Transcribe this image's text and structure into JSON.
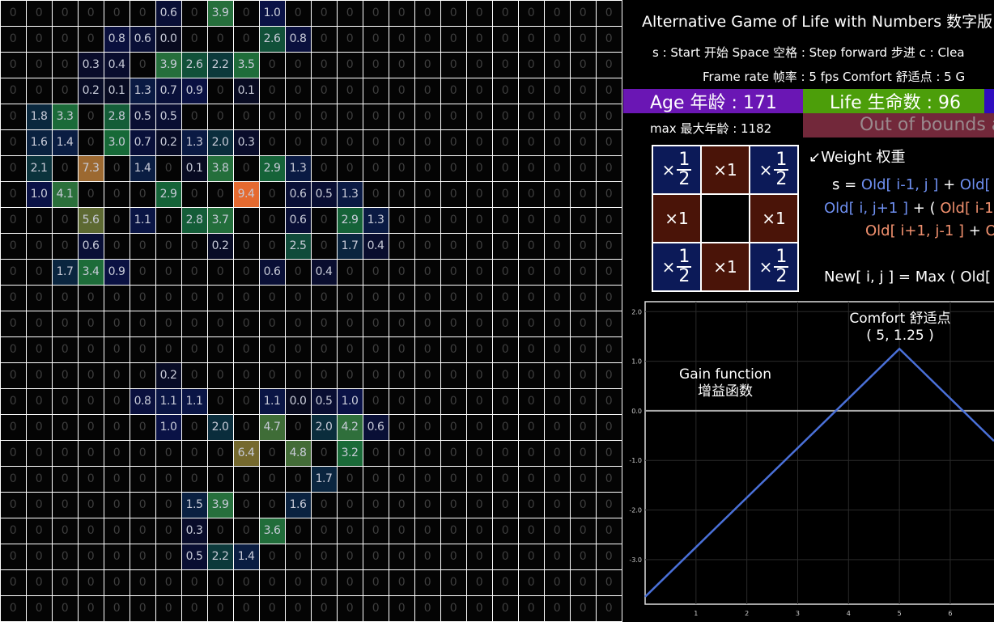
{
  "title": "Alternative Game of Life with Numbers   数字版",
  "controls": "s : Start 开始    Space 空格 : Step forward 步进    c : Clea",
  "frame_line": "Frame rate 帧率 : 5 fps    Comfort 舒适点 : 5    G",
  "age": "Age 年龄 : 171",
  "life": "Life 生命数 : 96",
  "max_age": "max 最大年龄 : 1182",
  "out_of_bounds": "Out of bounds a",
  "colors": {
    "age_bar": "#6a16b4",
    "life_bar": "#4c9e0a",
    "third_bar": "#2e0dbe",
    "oob_bar": "#72283a",
    "diag_weight": "#0c1a58",
    "card_weight": "#4a1408",
    "formula_blue": "#6e8ff0",
    "formula_salmon": "#f0906e",
    "gain_line": "#4a70d8"
  },
  "weights": {
    "label": "↙Weight 权重",
    "times": "×",
    "one": "×1",
    "half_num": "1",
    "half_den": "2"
  },
  "formula": {
    "l1": [
      "s = ",
      "Old[ i-1, j ]",
      " + ",
      "Old[ i"
    ],
    "l2": [
      "Old[ i, j+1 ]",
      " + ( ",
      "Old[ i-1,"
    ],
    "l3": [
      "Old[ i+1, j-1 ]",
      " + ",
      "Ol"
    ],
    "l4": "New[ i, j ] = Max ( Old["
  },
  "grid": [
    [
      "0",
      "0",
      "0",
      "0",
      "0",
      "0",
      "0.6",
      "0",
      "3.9",
      "0",
      "1.0",
      "0",
      "0",
      "0",
      "0",
      "0",
      "0",
      "0",
      "0",
      "0",
      "0",
      "0",
      "0",
      "0"
    ],
    [
      "0",
      "0",
      "0",
      "0",
      "0.8",
      "0.6",
      "0.0",
      "0",
      "0",
      "0",
      "2.6",
      "0.8",
      "0",
      "0",
      "0",
      "0",
      "0",
      "0",
      "0",
      "0",
      "0",
      "0",
      "0",
      "0"
    ],
    [
      "0",
      "0",
      "0",
      "0.3",
      "0.4",
      "0",
      "3.9",
      "2.6",
      "2.2",
      "3.5",
      "0",
      "0",
      "0",
      "0",
      "0",
      "0",
      "0",
      "0",
      "0",
      "0",
      "0",
      "0",
      "0",
      "0"
    ],
    [
      "0",
      "0",
      "0",
      "0.2",
      "0.1",
      "1.3",
      "0.7",
      "0.9",
      "0",
      "0.1",
      "0",
      "0",
      "0",
      "0",
      "0",
      "0",
      "0",
      "0",
      "0",
      "0",
      "0",
      "0",
      "0",
      "0"
    ],
    [
      "0",
      "1.8",
      "3.3",
      "0",
      "2.8",
      "0.5",
      "0.5",
      "0",
      "0",
      "0",
      "0",
      "0",
      "0",
      "0",
      "0",
      "0",
      "0",
      "0",
      "0",
      "0",
      "0",
      "0",
      "0",
      "0"
    ],
    [
      "0",
      "1.6",
      "1.4",
      "0",
      "3.0",
      "0.7",
      "0.2",
      "1.3",
      "2.0",
      "0.3",
      "0",
      "0",
      "0",
      "0",
      "0",
      "0",
      "0",
      "0",
      "0",
      "0",
      "0",
      "0",
      "0",
      "0"
    ],
    [
      "0",
      "2.1",
      "0",
      "7.3",
      "0",
      "1.4",
      "0",
      "0.1",
      "3.8",
      "0",
      "2.9",
      "1.3",
      "0",
      "0",
      "0",
      "0",
      "0",
      "0",
      "0",
      "0",
      "0",
      "0",
      "0",
      "0"
    ],
    [
      "0",
      "1.0",
      "4.1",
      "0",
      "0",
      "0",
      "2.9",
      "0",
      "0",
      "9.4",
      "0",
      "0.6",
      "0.5",
      "1.3",
      "0",
      "0",
      "0",
      "0",
      "0",
      "0",
      "0",
      "0",
      "0",
      "0"
    ],
    [
      "0",
      "0",
      "0",
      "5.6",
      "0",
      "1.1",
      "0",
      "2.8",
      "3.7",
      "0",
      "0",
      "0.6",
      "0",
      "2.9",
      "1.3",
      "0",
      "0",
      "0",
      "0",
      "0",
      "0",
      "0",
      "0",
      "0"
    ],
    [
      "0",
      "0",
      "0",
      "0.6",
      "0",
      "0",
      "0",
      "0",
      "0.2",
      "0",
      "0",
      "2.5",
      "0",
      "1.7",
      "0.4",
      "0",
      "0",
      "0",
      "0",
      "0",
      "0",
      "0",
      "0",
      "0"
    ],
    [
      "0",
      "0",
      "1.7",
      "3.4",
      "0.9",
      "0",
      "0",
      "0",
      "0",
      "0",
      "0.6",
      "0",
      "0.4",
      "0",
      "0",
      "0",
      "0",
      "0",
      "0",
      "0",
      "0",
      "0",
      "0",
      "0"
    ],
    [
      "0",
      "0",
      "0",
      "0",
      "0",
      "0",
      "0",
      "0",
      "0",
      "0",
      "0",
      "0",
      "0",
      "0",
      "0",
      "0",
      "0",
      "0",
      "0",
      "0",
      "0",
      "0",
      "0",
      "0"
    ],
    [
      "0",
      "0",
      "0",
      "0",
      "0",
      "0",
      "0",
      "0",
      "0",
      "0",
      "0",
      "0",
      "0",
      "0",
      "0",
      "0",
      "0",
      "0",
      "0",
      "0",
      "0",
      "0",
      "0",
      "0"
    ],
    [
      "0",
      "0",
      "0",
      "0",
      "0",
      "0",
      "0",
      "0",
      "0",
      "0",
      "0",
      "0",
      "0",
      "0",
      "0",
      "0",
      "0",
      "0",
      "0",
      "0",
      "0",
      "0",
      "0",
      "0"
    ],
    [
      "0",
      "0",
      "0",
      "0",
      "0",
      "0",
      "0.2",
      "0",
      "0",
      "0",
      "0",
      "0",
      "0",
      "0",
      "0",
      "0",
      "0",
      "0",
      "0",
      "0",
      "0",
      "0",
      "0",
      "0"
    ],
    [
      "0",
      "0",
      "0",
      "0",
      "0",
      "0.8",
      "1.1",
      "1.1",
      "0",
      "0",
      "1.1",
      "0.0",
      "0.5",
      "1.0",
      "0",
      "0",
      "0",
      "0",
      "0",
      "0",
      "0",
      "0",
      "0",
      "0"
    ],
    [
      "0",
      "0",
      "0",
      "0",
      "0",
      "0",
      "1.0",
      "0",
      "2.0",
      "0",
      "4.7",
      "0",
      "2.0",
      "4.2",
      "0.6",
      "0",
      "0",
      "0",
      "0",
      "0",
      "0",
      "0",
      "0",
      "0"
    ],
    [
      "0",
      "0",
      "0",
      "0",
      "0",
      "0",
      "0",
      "0",
      "0",
      "6.4",
      "0",
      "4.8",
      "0",
      "3.2",
      "0",
      "0",
      "0",
      "0",
      "0",
      "0",
      "0",
      "0",
      "0",
      "0"
    ],
    [
      "0",
      "0",
      "0",
      "0",
      "0",
      "0",
      "0",
      "0",
      "0",
      "0",
      "0",
      "0",
      "1.7",
      "0",
      "0",
      "0",
      "0",
      "0",
      "0",
      "0",
      "0",
      "0",
      "0",
      "0"
    ],
    [
      "0",
      "0",
      "0",
      "0",
      "0",
      "0",
      "0",
      "1.5",
      "3.9",
      "0",
      "0",
      "1.6",
      "0",
      "0",
      "0",
      "0",
      "0",
      "0",
      "0",
      "0",
      "0",
      "0",
      "0",
      "0"
    ],
    [
      "0",
      "0",
      "0",
      "0",
      "0",
      "0",
      "0",
      "0.3",
      "0",
      "0",
      "3.6",
      "0",
      "0",
      "0",
      "0",
      "0",
      "0",
      "0",
      "0",
      "0",
      "0",
      "0",
      "0",
      "0"
    ],
    [
      "0",
      "0",
      "0",
      "0",
      "0",
      "0",
      "0",
      "0.5",
      "2.2",
      "1.4",
      "0",
      "0",
      "0",
      "0",
      "0",
      "0",
      "0",
      "0",
      "0",
      "0",
      "0",
      "0",
      "0",
      "0"
    ],
    [
      "0",
      "0",
      "0",
      "0",
      "0",
      "0",
      "0",
      "0",
      "0",
      "0",
      "0",
      "0",
      "0",
      "0",
      "0",
      "0",
      "0",
      "0",
      "0",
      "0",
      "0",
      "0",
      "0",
      "0"
    ],
    [
      "0",
      "0",
      "0",
      "0",
      "0",
      "0",
      "0",
      "0",
      "0",
      "0",
      "0",
      "0",
      "0",
      "0",
      "0",
      "0",
      "0",
      "0",
      "0",
      "0",
      "0",
      "0",
      "0",
      "0"
    ]
  ],
  "chart_data": {
    "type": "line",
    "xticks": [
      "1",
      "2",
      "3",
      "4",
      "5",
      "6"
    ],
    "yticks": [
      "2.0",
      "1.0",
      "0.0",
      "-1.0",
      "-2.0",
      "-3.0"
    ],
    "xlim": [
      0,
      6.86
    ],
    "ylim": [
      -3.9,
      2.2
    ],
    "grid": true,
    "series": [
      {
        "x": [
          0,
          5,
          6.86
        ],
        "y": [
          -3.75,
          1.25,
          -0.61
        ]
      }
    ],
    "annotations": {
      "label1": "Gain function",
      "label2": "增益函数",
      "comfort1": "Comfort 舒适点",
      "comfort2": "( 5, 1.25 )"
    }
  }
}
